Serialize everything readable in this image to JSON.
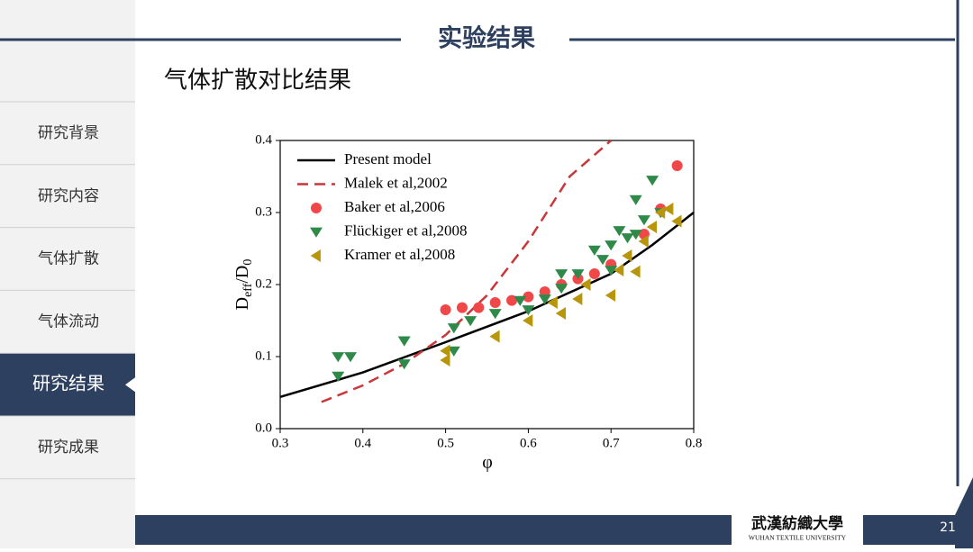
{
  "header": {
    "title": "实验结果",
    "subtitle": "气体扩散对比结果"
  },
  "sidebar": {
    "items": [
      "研究背景",
      "研究内容",
      "气体扩散",
      "气体流动",
      "研究结果",
      "研究成果"
    ],
    "active": 4
  },
  "footer": {
    "logo_cn": "武漢紡織大學",
    "logo_en": "WUHAN TEXTILE UNIVERSITY",
    "page": "21"
  },
  "chart_data": {
    "type": "scatter",
    "xlabel": "φ",
    "ylabel_parts": [
      "D",
      "eff",
      "/D",
      "0"
    ],
    "xlim": [
      0.3,
      0.8
    ],
    "ylim": [
      0,
      0.4
    ],
    "xticks": [
      0.3,
      0.4,
      0.5,
      0.6,
      0.7,
      0.8
    ],
    "yticks": [
      {
        "value": 0,
        "label": "0.0"
      },
      0.1,
      0.2,
      0.3,
      0.4
    ],
    "legend": "upper left",
    "series": [
      {
        "name": "Present model",
        "kind": "line",
        "dash": false,
        "color": "#000000",
        "x": [
          0.3,
          0.4,
          0.5,
          0.6,
          0.7,
          0.75,
          0.8
        ],
        "values": [
          0.044,
          0.078,
          0.12,
          0.163,
          0.215,
          0.255,
          0.3
        ]
      },
      {
        "name": "Malek et al,2002",
        "kind": "line",
        "dash": true,
        "color": "#c8373a",
        "x": [
          0.35,
          0.4,
          0.45,
          0.5,
          0.55,
          0.6,
          0.65,
          0.7
        ],
        "values": [
          0.037,
          0.06,
          0.09,
          0.13,
          0.185,
          0.26,
          0.35,
          0.4
        ]
      },
      {
        "name": "Baker et al,2006",
        "kind": "scatter",
        "marker": "circle",
        "color": "#f04848",
        "x": [
          0.5,
          0.52,
          0.54,
          0.56,
          0.58,
          0.6,
          0.62,
          0.64,
          0.66,
          0.68,
          0.7,
          0.74,
          0.76,
          0.78
        ],
        "values": [
          0.165,
          0.168,
          0.168,
          0.175,
          0.178,
          0.183,
          0.19,
          0.2,
          0.208,
          0.215,
          0.228,
          0.27,
          0.305,
          0.365
        ]
      },
      {
        "name": "Flückiger et al,2008",
        "kind": "scatter",
        "marker": "triangle-down",
        "color": "#2f8a4a",
        "x": [
          0.37,
          0.385,
          0.37,
          0.45,
          0.45,
          0.51,
          0.51,
          0.53,
          0.56,
          0.59,
          0.6,
          0.62,
          0.64,
          0.64,
          0.66,
          0.68,
          0.69,
          0.7,
          0.7,
          0.71,
          0.72,
          0.73,
          0.73,
          0.74,
          0.75,
          0.76
        ],
        "values": [
          0.1,
          0.1,
          0.073,
          0.122,
          0.09,
          0.14,
          0.108,
          0.15,
          0.16,
          0.178,
          0.165,
          0.18,
          0.215,
          0.195,
          0.215,
          0.248,
          0.235,
          0.255,
          0.22,
          0.275,
          0.265,
          0.27,
          0.318,
          0.29,
          0.345,
          0.3
        ]
      },
      {
        "name": "Kramer et al,2008",
        "kind": "scatter",
        "marker": "triangle-left",
        "color": "#b8960c",
        "x": [
          0.5,
          0.5,
          0.56,
          0.6,
          0.63,
          0.64,
          0.66,
          0.67,
          0.7,
          0.71,
          0.72,
          0.73,
          0.74,
          0.75,
          0.76,
          0.77,
          0.78
        ],
        "values": [
          0.095,
          0.108,
          0.128,
          0.15,
          0.175,
          0.16,
          0.18,
          0.2,
          0.185,
          0.22,
          0.24,
          0.218,
          0.26,
          0.28,
          0.3,
          0.305,
          0.288
        ]
      }
    ]
  }
}
